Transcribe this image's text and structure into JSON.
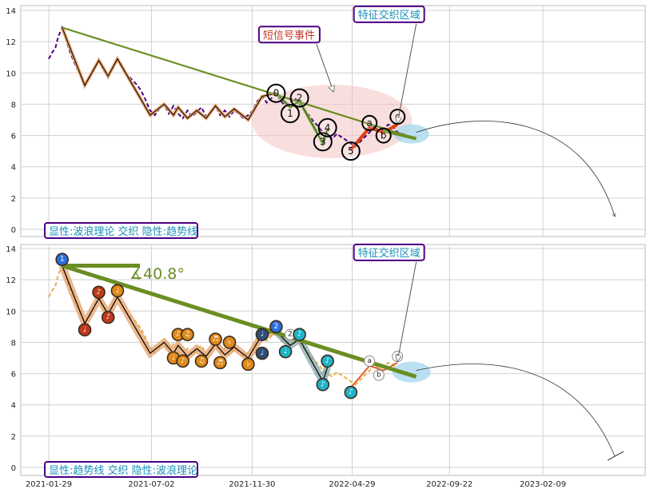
{
  "chart_data": [
    {
      "type": "line",
      "panel": "top",
      "x_axis": {
        "labels": [
          "2021-01-29",
          "2021-07-02",
          "2021-11-30",
          "2022-04-29",
          "2022-09-22",
          "2023-02-09"
        ]
      },
      "y_axis": {
        "ticks": [
          0,
          2,
          4,
          6,
          8,
          10,
          12,
          14
        ],
        "ylim": [
          -0.5,
          14.5
        ]
      },
      "grid": true,
      "series": [
        {
          "style": "dashed-purple",
          "points": [
            [
              "2021-01-29",
              10.9
            ],
            [
              "2021-02-03",
              11.3
            ],
            [
              "2021-02-08",
              11.6
            ],
            [
              "2021-02-12",
              12.3
            ],
            [
              "2021-02-18",
              12.9
            ],
            [
              "2021-02-24",
              12.1
            ],
            [
              "2021-03-03",
              11.2
            ],
            [
              "2021-03-10",
              10.5
            ],
            [
              "2021-03-17",
              9.9
            ],
            [
              "2021-03-24",
              9.3
            ],
            [
              "2021-03-31",
              9.6
            ],
            [
              "2021-04-07",
              10.3
            ],
            [
              "2021-04-14",
              10.8
            ],
            [
              "2021-04-21",
              10.2
            ],
            [
              "2021-04-28",
              9.7
            ],
            [
              "2021-05-05",
              10.4
            ],
            [
              "2021-05-12",
              10.9
            ],
            [
              "2021-05-19",
              10.4
            ],
            [
              "2021-05-26",
              9.9
            ],
            [
              "2021-06-02",
              9.6
            ],
            [
              "2021-06-09",
              9.3
            ],
            [
              "2021-06-16",
              8.9
            ],
            [
              "2021-06-23",
              8.3
            ],
            [
              "2021-06-30",
              7.6
            ],
            [
              "2021-07-07",
              7.3
            ],
            [
              "2021-07-14",
              7.7
            ],
            [
              "2021-07-21",
              8.0
            ],
            [
              "2021-07-28",
              7.4
            ],
            [
              "2021-08-04",
              7.9
            ],
            [
              "2021-08-11",
              7.4
            ],
            [
              "2021-08-18",
              7.1
            ],
            [
              "2021-08-25",
              7.6
            ],
            [
              "2021-09-01",
              7.2
            ],
            [
              "2021-09-08",
              7.5
            ],
            [
              "2021-09-15",
              7.8
            ],
            [
              "2021-09-22",
              7.2
            ],
            [
              "2021-09-29",
              7.5
            ],
            [
              "2021-10-06",
              7.9
            ],
            [
              "2021-10-13",
              7.3
            ],
            [
              "2021-10-20",
              7.6
            ],
            [
              "2021-10-27",
              7.2
            ],
            [
              "2021-11-03",
              7.6
            ],
            [
              "2021-11-10",
              7.4
            ],
            [
              "2021-11-17",
              7.1
            ],
            [
              "2021-11-24",
              7.3
            ],
            [
              "2021-12-01",
              7.6
            ],
            [
              "2021-12-08",
              8.2
            ],
            [
              "2021-12-15",
              8.5
            ],
            [
              "2021-12-22",
              8.1
            ],
            [
              "2021-12-29",
              8.4
            ],
            [
              "2022-01-05",
              8.7
            ],
            [
              "2022-01-12",
              8.2
            ],
            [
              "2022-01-19",
              7.9
            ],
            [
              "2022-01-26",
              8.1
            ],
            [
              "2022-02-02",
              8.4
            ],
            [
              "2022-02-09",
              8.0
            ],
            [
              "2022-02-16",
              7.6
            ],
            [
              "2022-02-23",
              7.3
            ],
            [
              "2022-03-02",
              6.9
            ],
            [
              "2022-03-09",
              6.6
            ],
            [
              "2022-03-16",
              6.2
            ],
            [
              "2022-03-23",
              6.0
            ],
            [
              "2022-03-30",
              5.8
            ],
            [
              "2022-04-06",
              6.1
            ],
            [
              "2022-04-13",
              5.9
            ],
            [
              "2022-04-20",
              5.7
            ],
            [
              "2022-04-27",
              5.5
            ],
            [
              "2022-05-04",
              5.3
            ],
            [
              "2022-05-11",
              5.6
            ],
            [
              "2022-05-18",
              5.9
            ],
            [
              "2022-05-25",
              6.2
            ],
            [
              "2022-06-01",
              6.6
            ],
            [
              "2022-06-08",
              6.3
            ],
            [
              "2022-06-15",
              6.4
            ],
            [
              "2022-06-22",
              6.7
            ],
            [
              "2022-06-29",
              6.6
            ],
            [
              "2022-07-06",
              6.2
            ],
            [
              "2022-07-13",
              6.1
            ],
            [
              "2022-07-20",
              6.0
            ],
            [
              "2022-07-27",
              5.9
            ]
          ]
        },
        {
          "style": "wave-path",
          "points": [
            [
              "2021-02-18",
              12.9
            ],
            [
              "2021-03-24",
              9.2
            ],
            [
              "2021-04-14",
              10.8
            ],
            [
              "2021-04-28",
              9.8
            ],
            [
              "2021-05-12",
              10.9
            ],
            [
              "2021-06-30",
              7.3
            ],
            [
              "2021-07-21",
              8.0
            ],
            [
              "2021-08-04",
              7.3
            ],
            [
              "2021-08-11",
              7.8
            ],
            [
              "2021-08-25",
              7.1
            ],
            [
              "2021-09-08",
              7.6
            ],
            [
              "2021-09-22",
              7.1
            ],
            [
              "2021-10-06",
              7.9
            ],
            [
              "2021-10-20",
              7.2
            ],
            [
              "2021-11-03",
              7.7
            ],
            [
              "2021-11-24",
              7.0
            ],
            [
              "2021-12-15",
              8.5
            ],
            [
              "2022-01-05",
              8.7
            ]
          ]
        },
        {
          "style": "green-path",
          "points": [
            [
              "2022-01-05",
              8.7
            ],
            [
              "2022-01-26",
              7.8
            ],
            [
              "2022-02-09",
              8.2
            ],
            [
              "2022-03-16",
              5.5
            ],
            [
              "2022-03-23",
              6.4
            ]
          ]
        },
        {
          "style": "red-path",
          "points": [
            [
              "2022-04-27",
              5.1
            ],
            [
              "2022-05-25",
              6.5
            ],
            [
              "2022-06-15",
              6.2
            ],
            [
              "2022-07-06",
              6.7
            ]
          ]
        },
        {
          "style": "trendline",
          "points": [
            [
              "2021-02-18",
              12.9
            ],
            [
              "2022-08-03",
              5.8
            ]
          ]
        }
      ],
      "markers": [
        {
          "label": "0",
          "x": "2022-01-05",
          "y": 8.7,
          "size": "large"
        },
        {
          "label": "1",
          "x": "2022-01-26",
          "y": 7.4,
          "size": "large"
        },
        {
          "label": "2",
          "x": "2022-02-09",
          "y": 8.4,
          "size": "large"
        },
        {
          "label": "3",
          "x": "2022-03-16",
          "y": 5.6,
          "size": "large"
        },
        {
          "label": "4",
          "x": "2022-03-23",
          "y": 6.5,
          "size": "large"
        },
        {
          "label": "5",
          "x": "2022-04-27",
          "y": 5.0,
          "size": "large"
        },
        {
          "label": "a",
          "x": "2022-05-25",
          "y": 6.8,
          "size": "medium"
        },
        {
          "label": "b",
          "x": "2022-06-15",
          "y": 6.0,
          "size": "medium"
        },
        {
          "label": "c",
          "x": "2022-07-06",
          "y": 7.2,
          "size": "medium"
        }
      ],
      "annotations": [
        {
          "text": "短信号事件",
          "x": "2021-12-15",
          "y": 12.3,
          "arrow_to": [
            "2022-04-01",
            8.8
          ]
        },
        {
          "text": "特征交织区域",
          "x": "2022-05-04",
          "y": 13.6,
          "arrow_to": [
            "2022-07-06",
            6.8
          ]
        }
      ],
      "legend_box": "显性:波浪理论 交织 隐性:趋势线",
      "legend_placement": "bottom-left"
    },
    {
      "type": "line",
      "panel": "bottom",
      "x_axis": {
        "labels": [
          "2021-01-29",
          "2021-07-02",
          "2021-11-30",
          "2022-04-29",
          "2022-09-22",
          "2023-02-09"
        ]
      },
      "y_axis": {
        "ticks": [
          0,
          2,
          4,
          6,
          8,
          10,
          12,
          14
        ],
        "ylim": [
          -0.5,
          14.5
        ]
      },
      "grid": true,
      "angle_label": "∡40.8°",
      "markers": [
        {
          "label": "1",
          "x": "2021-02-18",
          "y": 13.3,
          "color": "#2a6fdb",
          "kind": "filled"
        },
        {
          "label": "♩",
          "x": "2021-03-24",
          "y": 8.8,
          "color": "#c0391b",
          "kind": "filled"
        },
        {
          "label": "♪",
          "x": "2021-04-14",
          "y": 11.2,
          "color": "#c0391b",
          "kind": "filled"
        },
        {
          "label": "♪",
          "x": "2021-04-28",
          "y": 9.6,
          "color": "#c0391b",
          "kind": "filled"
        },
        {
          "label": "♩",
          "x": "2021-05-12",
          "y": 11.3,
          "color": "#e08a1a",
          "kind": "filled"
        },
        {
          "label": "♩",
          "x": "2021-08-04",
          "y": 7.0,
          "color": "#e08a1a",
          "kind": "filled"
        },
        {
          "label": "♪",
          "x": "2021-08-11",
          "y": 8.5,
          "color": "#e08a1a",
          "kind": "filled"
        },
        {
          "label": "♪",
          "x": "2021-08-18",
          "y": 6.8,
          "color": "#e08a1a",
          "kind": "filled"
        },
        {
          "label": "♫",
          "x": "2021-08-25",
          "y": 8.5,
          "color": "#e08a1a",
          "kind": "filled"
        },
        {
          "label": "♫",
          "x": "2021-09-15",
          "y": 6.8,
          "color": "#e08a1a",
          "kind": "filled"
        },
        {
          "label": "♬",
          "x": "2021-10-06",
          "y": 8.2,
          "color": "#e08a1a",
          "kind": "filled"
        },
        {
          "label": "♬",
          "x": "2021-10-13",
          "y": 6.7,
          "color": "#e08a1a",
          "kind": "filled"
        },
        {
          "label": "♭",
          "x": "2021-10-27",
          "y": 8.0,
          "color": "#e08a1a",
          "kind": "filled"
        },
        {
          "label": "♭",
          "x": "2021-11-24",
          "y": 6.6,
          "color": "#e08a1a",
          "kind": "filled"
        },
        {
          "label": "♩",
          "x": "2021-12-15",
          "y": 8.5,
          "color": "#2e4f7a",
          "kind": "filled"
        },
        {
          "label": "♩",
          "x": "2021-12-15",
          "y": 7.3,
          "color": "#2e4f7a",
          "kind": "filled"
        },
        {
          "label": "2",
          "x": "2022-01-05",
          "y": 9.0,
          "color": "#2a6fdb",
          "kind": "filled"
        },
        {
          "label": "♩",
          "x": "2022-01-19",
          "y": 7.4,
          "color": "#1fb3c8",
          "kind": "filled"
        },
        {
          "label": "2",
          "x": "2022-01-26",
          "y": 8.5,
          "color": "#ffffff",
          "kind": "outline"
        },
        {
          "label": "♪",
          "x": "2022-02-09",
          "y": 8.5,
          "color": "#1fb3c8",
          "kind": "filled"
        },
        {
          "label": "♪",
          "x": "2022-03-16",
          "y": 5.3,
          "color": "#1fb3c8",
          "kind": "filled"
        },
        {
          "label": "♪",
          "x": "2022-03-23",
          "y": 6.8,
          "color": "#1fb3c8",
          "kind": "filled"
        },
        {
          "label": "♪",
          "x": "2022-04-27",
          "y": 4.8,
          "color": "#1fb3c8",
          "kind": "filled"
        },
        {
          "label": "a",
          "x": "2022-05-25",
          "y": 6.8,
          "color": "#ffffff",
          "kind": "outline"
        },
        {
          "label": "b",
          "x": "2022-06-08",
          "y": 5.9,
          "color": "#ffffff",
          "kind": "outline"
        },
        {
          "label": "c",
          "x": "2022-07-06",
          "y": 7.1,
          "color": "#ffffff",
          "kind": "outline"
        }
      ],
      "annotations": [
        {
          "text": "特征交织区域",
          "x": "2022-05-04",
          "y": 13.6,
          "arrow_to": [
            "2022-07-06",
            6.8
          ]
        }
      ],
      "legend_box": "显性:趋势线 交织 隐性:波浪理论",
      "legend_placement": "bottom-left"
    }
  ],
  "colors": {
    "trend": "#6b8e23",
    "wave_fill": "#e4a06a",
    "dashed_top": "#4b0082",
    "dashed_bottom": "#e8b04a",
    "box_border": "#4b0082",
    "label_text": "#1a8fb8",
    "annotation_red": "#c0392b",
    "event_ellipse": "#f4c2c2",
    "cluster_blue": "#a9d8ee"
  }
}
